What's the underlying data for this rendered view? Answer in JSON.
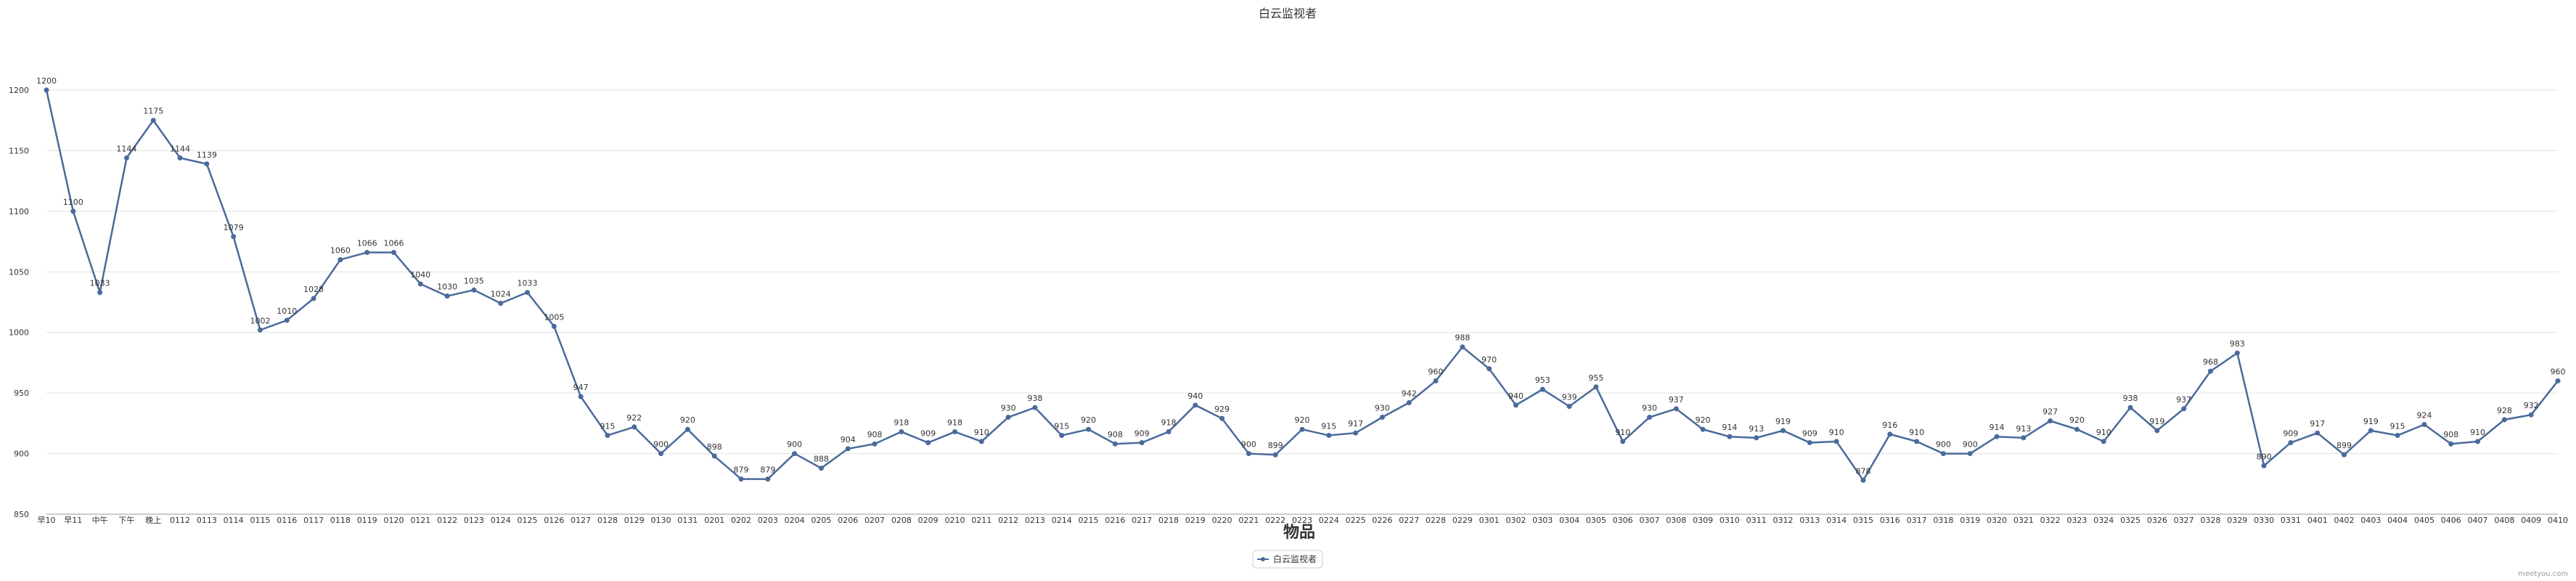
{
  "chart_data": {
    "type": "line",
    "title": "白云监视者",
    "xlabel": "物品",
    "ylabel": "",
    "ylim": [
      850,
      1200
    ],
    "yticks": [
      850,
      900,
      950,
      1000,
      1050,
      1100,
      1150,
      1200
    ],
    "grid": "horizontal",
    "legend_position": "bottom-center",
    "colors": {
      "series": "#4a6a9b",
      "grid": "#e0e0e0",
      "axis": "#999999"
    },
    "categories": [
      "早10",
      "早11",
      "中午",
      "下午",
      "晚上",
      "0112",
      "0113",
      "0114",
      "0115",
      "0116",
      "0117",
      "0118",
      "0119",
      "0120",
      "0121",
      "0122",
      "0123",
      "0124",
      "0125",
      "0126",
      "0127",
      "0128",
      "0129",
      "0130",
      "0131",
      "0201",
      "0202",
      "0203",
      "0204",
      "0205",
      "0206",
      "0207",
      "0208",
      "0209",
      "0210",
      "0211",
      "0212",
      "0213",
      "0214",
      "0215",
      "0216",
      "0217",
      "0218",
      "0219",
      "0220",
      "0221",
      "0222",
      "0223",
      "0224",
      "0225",
      "0226",
      "0227",
      "0228",
      "0229",
      "0301",
      "0302",
      "0303",
      "0304",
      "0305",
      "0306",
      "0307",
      "0308",
      "0309",
      "0310",
      "0311",
      "0312",
      "0313",
      "0314",
      "0315",
      "0316",
      "0317",
      "0318",
      "0319",
      "0320",
      "0321",
      "0322",
      "0323",
      "0324",
      "0325",
      "0326",
      "0327",
      "0328",
      "0329",
      "0330",
      "0331",
      "0401",
      "0402",
      "0403",
      "0404",
      "0405",
      "0406",
      "0407",
      "0408",
      "0409",
      "0410"
    ],
    "series": [
      {
        "name": "白云监视者",
        "values": [
          1200,
          1100,
          1033,
          1144,
          1175,
          1144,
          1139,
          1079,
          1002,
          1010,
          1028,
          1060,
          1066,
          1066,
          1040,
          1030,
          1035,
          1024,
          1033,
          1005,
          947,
          915,
          922,
          900,
          920,
          898,
          879,
          879,
          900,
          888,
          904,
          908,
          918,
          909,
          918,
          910,
          930,
          938,
          915,
          920,
          908,
          909,
          918,
          940,
          929,
          900,
          899,
          920,
          915,
          917,
          930,
          942,
          960,
          988,
          970,
          940,
          953,
          939,
          955,
          910,
          930,
          937,
          920,
          914,
          913,
          919,
          909,
          910,
          878,
          916,
          910,
          900,
          900,
          914,
          913,
          927,
          920,
          910,
          938,
          919,
          937,
          968,
          983,
          890,
          909,
          917,
          899,
          919,
          915,
          924,
          908,
          910,
          928,
          932,
          960
        ]
      }
    ]
  },
  "watermark": "meetyou.com"
}
